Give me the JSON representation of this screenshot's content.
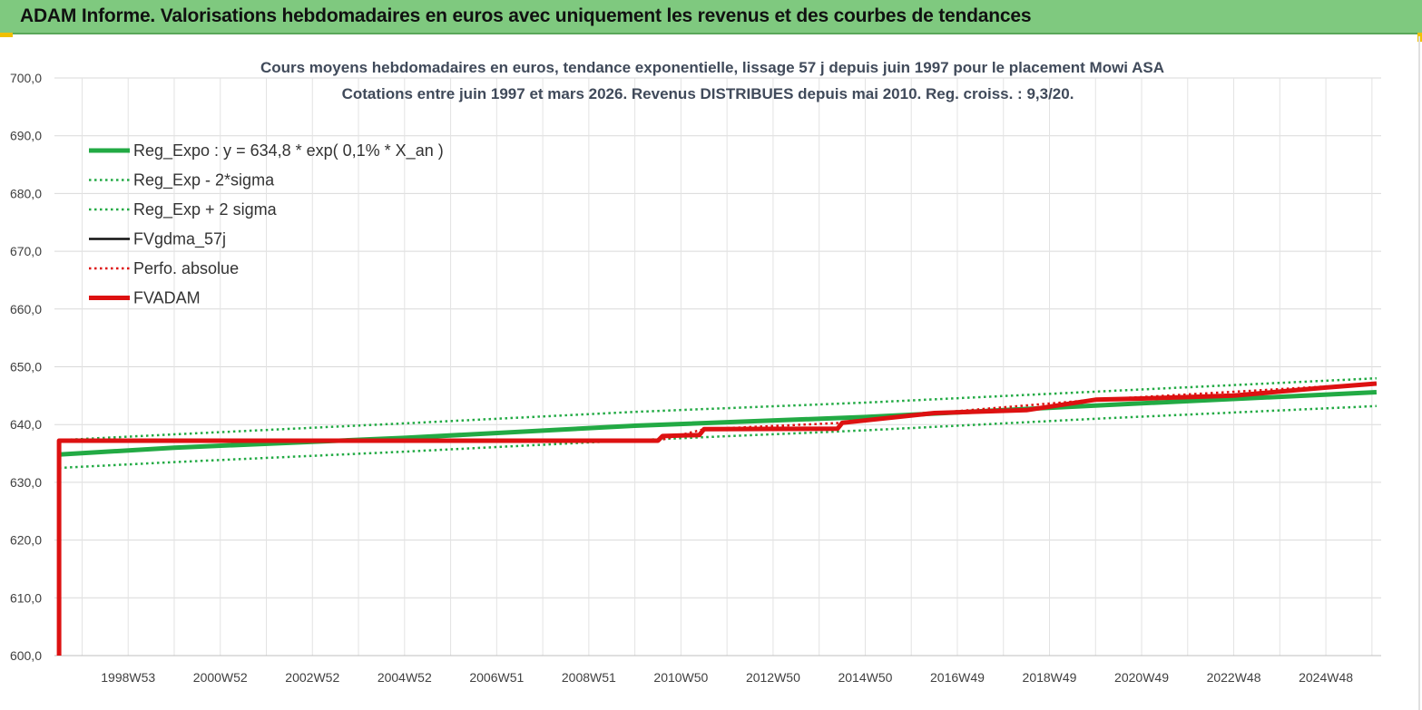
{
  "header": {
    "title": "ADAM Informe. Valorisations hebdomadaires en euros avec uniquement les revenus et des courbes de tendances"
  },
  "chart_data": {
    "type": "line",
    "title": "Cours moyens  hebdomadaires en euros, tendance exponentielle, lissage 57 j depuis juin 1997 pour le placement Mowi ASA",
    "subtitle": "Cotations entre juin 1997 et mars 2026. Revenus DISTRIBUES  depuis mai  2010. Reg.  croiss. : 9,3/20.",
    "xlabel": "",
    "ylabel": "",
    "ylim": [
      600,
      700
    ],
    "xlim": [
      1997.4,
      2026.2
    ],
    "yticks": [
      "600,0",
      "610,0",
      "620,0",
      "630,0",
      "640,0",
      "650,0",
      "660,0",
      "670,0",
      "680,0",
      "690,0",
      "700,0"
    ],
    "xticks": [
      {
        "label": "1998W53",
        "x": 1999.0
      },
      {
        "label": "2000W52",
        "x": 2001.0
      },
      {
        "label": "2002W52",
        "x": 2003.0
      },
      {
        "label": "2004W52",
        "x": 2005.0
      },
      {
        "label": "2006W51",
        "x": 2007.0
      },
      {
        "label": "2008W51",
        "x": 2009.0
      },
      {
        "label": "2010W50",
        "x": 2011.0
      },
      {
        "label": "2012W50",
        "x": 2013.0
      },
      {
        "label": "2014W50",
        "x": 2015.0
      },
      {
        "label": "2016W49",
        "x": 2017.0
      },
      {
        "label": "2018W49",
        "x": 2019.0
      },
      {
        "label": "2020W49",
        "x": 2021.0
      },
      {
        "label": "2022W48",
        "x": 2023.0
      },
      {
        "label": "2024W48",
        "x": 2025.0
      }
    ],
    "grid": true,
    "legend_position": "top-left",
    "series": [
      {
        "name": "Reg_Expo : y = 634,8 * exp( 0,1% *  X_an )",
        "color": "#22aa44",
        "style": "solid-thick",
        "points": [
          [
            1997.5,
            634.8
          ],
          [
            2000.0,
            636.0
          ],
          [
            2005.0,
            637.7
          ],
          [
            2010.0,
            639.8
          ],
          [
            2015.0,
            641.3
          ],
          [
            2020.0,
            643.3
          ],
          [
            2026.1,
            645.6
          ]
        ]
      },
      {
        "name": "Reg_Exp - 2*sigma",
        "color": "#22aa44",
        "style": "dotted",
        "points": [
          [
            1997.5,
            632.5
          ],
          [
            2000.0,
            633.5
          ],
          [
            2005.0,
            635.3
          ],
          [
            2010.0,
            637.3
          ],
          [
            2015.0,
            639.0
          ],
          [
            2020.0,
            641.0
          ],
          [
            2026.1,
            643.2
          ]
        ]
      },
      {
        "name": "Reg_Exp + 2 sigma",
        "color": "#22aa44",
        "style": "dotted",
        "points": [
          [
            1997.5,
            637.3
          ],
          [
            2000.0,
            638.3
          ],
          [
            2005.0,
            640.2
          ],
          [
            2010.0,
            642.2
          ],
          [
            2015.0,
            643.8
          ],
          [
            2020.0,
            645.7
          ],
          [
            2026.1,
            648.0
          ]
        ]
      },
      {
        "name": "FVgdma_57j",
        "color": "#111111",
        "style": "solid",
        "points": [
          [
            1997.5,
            600.0
          ],
          [
            1997.5,
            637.2
          ],
          [
            2010.5,
            637.2
          ],
          [
            2010.6,
            638.0
          ],
          [
            2011.4,
            638.2
          ],
          [
            2011.5,
            639.2
          ],
          [
            2014.4,
            639.3
          ],
          [
            2014.5,
            640.3
          ],
          [
            2016.5,
            642.0
          ],
          [
            2018.5,
            642.5
          ],
          [
            2020.0,
            644.3
          ],
          [
            2021.0,
            644.5
          ],
          [
            2023.0,
            645.0
          ],
          [
            2025.0,
            646.4
          ],
          [
            2026.1,
            647.1
          ]
        ]
      },
      {
        "name": "Perfo. absolue",
        "color": "#dd1111",
        "style": "dotted",
        "points": [
          [
            1997.5,
            637.2
          ],
          [
            2010.5,
            637.2
          ],
          [
            2011.5,
            639.2
          ],
          [
            2014.5,
            640.3
          ],
          [
            2016.5,
            642.0
          ],
          [
            2020.0,
            644.3
          ],
          [
            2026.1,
            647.1
          ]
        ]
      },
      {
        "name": "FVADAM",
        "color": "#dd1111",
        "style": "solid-thick",
        "points": [
          [
            1997.5,
            600.0
          ],
          [
            1997.5,
            637.2
          ],
          [
            2010.5,
            637.2
          ],
          [
            2010.6,
            638.0
          ],
          [
            2011.4,
            638.2
          ],
          [
            2011.5,
            639.2
          ],
          [
            2014.4,
            639.3
          ],
          [
            2014.5,
            640.3
          ],
          [
            2016.5,
            642.0
          ],
          [
            2018.5,
            642.5
          ],
          [
            2020.0,
            644.3
          ],
          [
            2021.0,
            644.5
          ],
          [
            2023.0,
            645.0
          ],
          [
            2025.0,
            646.4
          ],
          [
            2026.1,
            647.1
          ]
        ]
      }
    ]
  }
}
